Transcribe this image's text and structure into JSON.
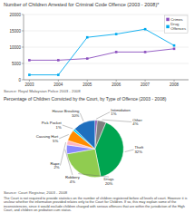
{
  "chart_data": [
    {
      "type": "line",
      "title": "Number of Children Arrested for Criminal Code Offence (2003 - 2008)*",
      "source": "Source: Royal Malaysian Police 2003 - 2008",
      "x": [
        2003,
        2004,
        2005,
        2006,
        2007,
        2008
      ],
      "series": [
        {
          "name": "Crimes",
          "color": "#8B4FBE",
          "marker": "square",
          "values": [
            6000,
            6000,
            6500,
            8500,
            8500,
            9500
          ]
        },
        {
          "name": "Drug\nOffences",
          "color": "#00AAEE",
          "marker": "square",
          "values": [
            1500,
            1500,
            13000,
            14000,
            15500,
            10500
          ]
        }
      ],
      "xlim": [
        2002.8,
        2008.5
      ],
      "xticks": [
        2003,
        2004,
        2005,
        2006,
        2007,
        2008
      ],
      "ylim": [
        0,
        20000
      ],
      "yticks": [
        0,
        5000,
        10000,
        15000,
        20000
      ],
      "grid": true,
      "legend": "upper right"
    },
    {
      "type": "pie",
      "title": "Percentage of Children Convicted by the Court, by Type of Offence (2003 - 2008)",
      "source": "Source: Court Registrar, 2003 - 2008",
      "footnote": "The Court is not required to provide statistics on the number of children registered before all levels of court. However it is unclear whether the information provided relates only to the Court for Children. If so, this may explain some of the inconsistencies, since it would exclude children charged with serious offences that are within the jurisdiction of the High Court, and children on probation cum status.",
      "categories": [
        "Intimidation",
        "Other",
        "Theft",
        "Drugs",
        "Robbery",
        "Rape",
        "Causing Hurt",
        "Pick Pocket",
        "House Breaking"
      ],
      "values": [
        1,
        4,
        32,
        20,
        4,
        2,
        5,
        1,
        10
      ],
      "value_labels": [
        "1%",
        "4%",
        "32%",
        "20%",
        "4%",
        "2%",
        "5%",
        "1%",
        "10%"
      ],
      "colors": [
        "#7030A0",
        "#808080",
        "#00A550",
        "#90CC50",
        "#8888FF",
        "#FFB6C1",
        "#FF8C00",
        "#00CCFF",
        "#1F6FBE"
      ],
      "data_labels": true
    }
  ]
}
